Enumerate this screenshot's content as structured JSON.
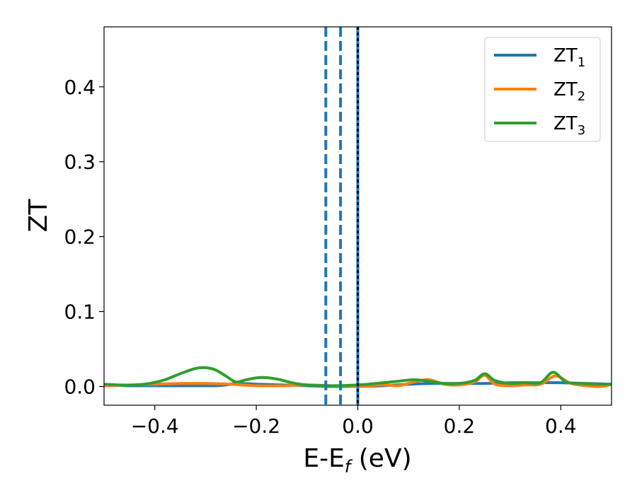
{
  "chart_data": {
    "type": "line",
    "xlabel": {
      "main": "E-E",
      "sub": "f",
      "rest": " (eV)"
    },
    "ylabel": "ZT",
    "xlim": [
      -0.5,
      0.5
    ],
    "ylim": [
      -0.025,
      0.48
    ],
    "xticks": [
      -0.4,
      -0.2,
      0.0,
      0.2,
      0.4
    ],
    "xtick_labels": [
      "−0.4",
      "−0.2",
      "0.0",
      "0.2",
      "0.4"
    ],
    "yticks": [
      0.0,
      0.1,
      0.2,
      0.3,
      0.4
    ],
    "ytick_labels": [
      "0.0",
      "0.1",
      "0.2",
      "0.3",
      "0.4"
    ],
    "grid": false,
    "legend_position": "top-right",
    "series": [
      {
        "name": "ZT",
        "name_sub": "1",
        "color": "#1f77b4",
        "x": [
          -0.5,
          -0.45,
          -0.4,
          -0.35,
          -0.3,
          -0.28,
          -0.26,
          -0.24,
          -0.2,
          -0.15,
          -0.1,
          -0.05,
          0.0,
          0.05,
          0.1,
          0.15,
          0.2,
          0.25,
          0.3,
          0.35,
          0.4,
          0.45,
          0.5
        ],
        "y": [
          0.002,
          0.001,
          0.001,
          0.001,
          0.001,
          0.001,
          0.002,
          0.004,
          0.003,
          0.002,
          0.001,
          0.0,
          0.0,
          0.001,
          0.003,
          0.004,
          0.004,
          0.004,
          0.005,
          0.005,
          0.005,
          0.004,
          0.003
        ]
      },
      {
        "name": "ZT",
        "name_sub": "2",
        "color": "#ff7f0e",
        "x": [
          -0.5,
          -0.45,
          -0.4,
          -0.35,
          -0.3,
          -0.25,
          -0.2,
          -0.15,
          -0.1,
          -0.05,
          0.0,
          0.05,
          0.08,
          0.11,
          0.14,
          0.17,
          0.2,
          0.23,
          0.25,
          0.27,
          0.3,
          0.33,
          0.36,
          0.39,
          0.42,
          0.45,
          0.48,
          0.5
        ],
        "y": [
          0.001,
          0.002,
          0.003,
          0.004,
          0.004,
          0.003,
          0.001,
          0.001,
          0.002,
          0.001,
          0.0,
          0.002,
          0.001,
          0.006,
          0.009,
          0.003,
          0.002,
          0.006,
          0.015,
          0.003,
          0.001,
          0.002,
          0.003,
          0.014,
          0.004,
          0.001,
          0.0,
          0.003
        ]
      },
      {
        "name": "ZT",
        "name_sub": "3",
        "color": "#2ca02c",
        "x": [
          -0.5,
          -0.47,
          -0.44,
          -0.41,
          -0.38,
          -0.35,
          -0.32,
          -0.3,
          -0.28,
          -0.26,
          -0.24,
          -0.22,
          -0.19,
          -0.16,
          -0.13,
          -0.1,
          -0.05,
          0.0,
          0.05,
          0.08,
          0.11,
          0.14,
          0.17,
          0.2,
          0.23,
          0.25,
          0.27,
          0.3,
          0.33,
          0.36,
          0.385,
          0.41,
          0.44,
          0.47,
          0.5
        ],
        "y": [
          0.003,
          0.002,
          0.002,
          0.004,
          0.009,
          0.017,
          0.024,
          0.025,
          0.022,
          0.014,
          0.006,
          0.009,
          0.012,
          0.01,
          0.005,
          0.002,
          0.001,
          0.002,
          0.005,
          0.007,
          0.009,
          0.007,
          0.004,
          0.004,
          0.008,
          0.017,
          0.008,
          0.004,
          0.005,
          0.005,
          0.019,
          0.006,
          0.004,
          0.003,
          0.003
        ]
      }
    ],
    "vlines": [
      {
        "x": -0.063,
        "style": "dashed",
        "color": "#1f77b4"
      },
      {
        "x": -0.034,
        "style": "dashed",
        "color": "#1f77b4"
      },
      {
        "x": 0.0,
        "style": "solid",
        "color": "#1f77b4"
      },
      {
        "x": 0.0,
        "style": "dotted",
        "color": "#000000"
      }
    ]
  }
}
